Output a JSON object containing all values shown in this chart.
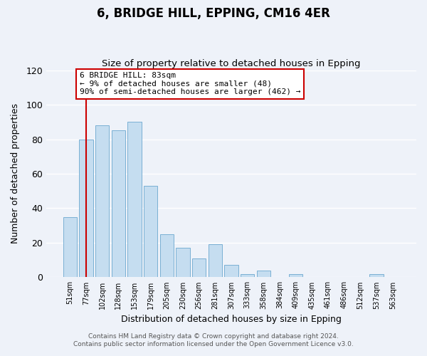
{
  "title": "6, BRIDGE HILL, EPPING, CM16 4ER",
  "subtitle": "Size of property relative to detached houses in Epping",
  "xlabel": "Distribution of detached houses by size in Epping",
  "ylabel": "Number of detached properties",
  "bar_color": "#c5ddf0",
  "bar_edge_color": "#7ab0d4",
  "categories": [
    "51sqm",
    "77sqm",
    "102sqm",
    "128sqm",
    "153sqm",
    "179sqm",
    "205sqm",
    "230sqm",
    "256sqm",
    "281sqm",
    "307sqm",
    "333sqm",
    "358sqm",
    "384sqm",
    "409sqm",
    "435sqm",
    "461sqm",
    "486sqm",
    "512sqm",
    "537sqm",
    "563sqm"
  ],
  "values": [
    35,
    80,
    88,
    85,
    90,
    53,
    25,
    17,
    11,
    19,
    7,
    2,
    4,
    0,
    2,
    0,
    0,
    0,
    0,
    2,
    0
  ],
  "ylim": [
    0,
    120
  ],
  "yticks": [
    0,
    20,
    40,
    60,
    80,
    100,
    120
  ],
  "marker_label": "6 BRIDGE HILL: 83sqm",
  "annotation_line1": "← 9% of detached houses are smaller (48)",
  "annotation_line2": "90% of semi-detached houses are larger (462) →",
  "annotation_box_color": "#ffffff",
  "annotation_box_edge_color": "#cc0000",
  "marker_line_color": "#cc0000",
  "footer_line1": "Contains HM Land Registry data © Crown copyright and database right 2024.",
  "footer_line2": "Contains public sector information licensed under the Open Government Licence v3.0.",
  "background_color": "#eef2f9",
  "grid_color": "#ffffff"
}
